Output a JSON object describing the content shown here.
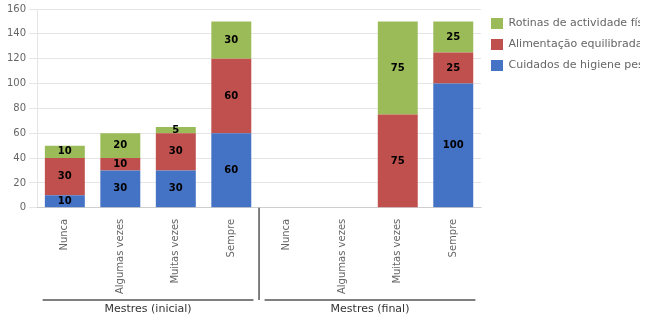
{
  "chart_data": {
    "type": "bar",
    "stacked": true,
    "categories": [
      "Nunca",
      "Algumas vezes",
      "Muitas vezes",
      "Sempre",
      "Nunca",
      "Algumas vezes",
      "Muitas vezes",
      "Sempre"
    ],
    "group_labels": [
      "Mestres (inicial)",
      "Mestres (final)"
    ],
    "series": [
      {
        "name": "Cuidados de higiene pessoal",
        "color": "#4472C4",
        "values": [
          10,
          30,
          30,
          60,
          0,
          0,
          0,
          100
        ]
      },
      {
        "name": "Alimentação equilibrada",
        "color": "#C0504D",
        "values": [
          30,
          10,
          30,
          60,
          0,
          0,
          75,
          25
        ]
      },
      {
        "name": "Rotinas de actividade física",
        "color": "#9BBB59",
        "values": [
          10,
          20,
          5,
          30,
          0,
          0,
          75,
          25
        ]
      }
    ],
    "ylim": [
      0,
      160
    ],
    "yticks": [
      0,
      20,
      40,
      60,
      80,
      100,
      120,
      140,
      160
    ],
    "grid": true,
    "legend": "upper right",
    "data_labels": true
  }
}
